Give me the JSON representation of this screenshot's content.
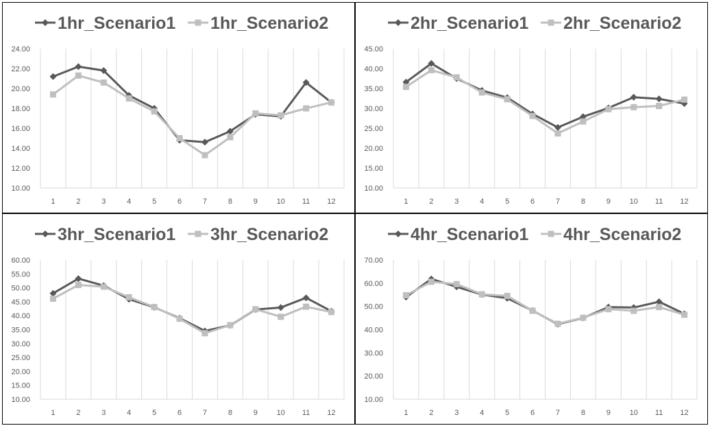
{
  "chart_data": [
    {
      "type": "line",
      "categories": [
        "1",
        "2",
        "3",
        "4",
        "5",
        "6",
        "7",
        "8",
        "9",
        "10",
        "11",
        "12"
      ],
      "ylim": [
        10,
        24
      ],
      "yticks": [
        "10.00",
        "12.00",
        "14.00",
        "16.00",
        "18.00",
        "20.00",
        "22.00",
        "24.00"
      ],
      "grid": "vertical",
      "legend_position": "top",
      "series": [
        {
          "name": "1hr_Scenario1",
          "color": "#595959",
          "marker": "diamond",
          "values": [
            21.2,
            22.2,
            21.8,
            19.3,
            18.0,
            14.8,
            14.6,
            15.7,
            17.4,
            17.2,
            20.6,
            18.6
          ]
        },
        {
          "name": "1hr_Scenario2",
          "color": "#bfbfbf",
          "marker": "square",
          "values": [
            19.4,
            21.3,
            20.6,
            19.0,
            17.7,
            15.0,
            13.3,
            15.1,
            17.5,
            17.3,
            18.0,
            18.6
          ]
        }
      ]
    },
    {
      "type": "line",
      "categories": [
        "1",
        "2",
        "3",
        "4",
        "5",
        "6",
        "7",
        "8",
        "9",
        "10",
        "11",
        "12"
      ],
      "ylim": [
        10,
        45
      ],
      "yticks": [
        "10.00",
        "15.00",
        "20.00",
        "25.00",
        "30.00",
        "35.00",
        "40.00",
        "45.00"
      ],
      "grid": "vertical",
      "legend_position": "top",
      "series": [
        {
          "name": "2hr_Scenario1",
          "color": "#595959",
          "marker": "diamond",
          "values": [
            36.6,
            41.3,
            37.5,
            34.5,
            32.7,
            28.6,
            25.2,
            27.9,
            30.1,
            32.8,
            32.4,
            31.2
          ]
        },
        {
          "name": "2hr_Scenario2",
          "color": "#bfbfbf",
          "marker": "square",
          "values": [
            35.4,
            39.6,
            37.8,
            34.0,
            32.3,
            28.1,
            23.7,
            26.7,
            29.8,
            30.3,
            30.6,
            32.2
          ]
        }
      ]
    },
    {
      "type": "line",
      "categories": [
        "1",
        "2",
        "3",
        "4",
        "5",
        "6",
        "7",
        "8",
        "9",
        "10",
        "11",
        "12"
      ],
      "ylim": [
        10,
        60
      ],
      "yticks": [
        "10.00",
        "15.00",
        "20.00",
        "25.00",
        "30.00",
        "35.00",
        "40.00",
        "45.00",
        "50.00",
        "55.00",
        "60.00"
      ],
      "grid": "vertical",
      "legend_position": "top",
      "series": [
        {
          "name": "3hr_Scenario1",
          "color": "#595959",
          "marker": "diamond",
          "values": [
            48.0,
            53.3,
            50.8,
            45.9,
            43.0,
            39.1,
            34.5,
            36.5,
            42.2,
            42.9,
            46.4,
            41.6
          ]
        },
        {
          "name": "3hr_Scenario2",
          "color": "#bfbfbf",
          "marker": "square",
          "values": [
            46.1,
            51.0,
            50.4,
            46.6,
            43.1,
            38.9,
            33.7,
            36.6,
            42.3,
            39.6,
            43.2,
            41.3
          ]
        }
      ]
    },
    {
      "type": "line",
      "categories": [
        "1",
        "2",
        "3",
        "4",
        "5",
        "6",
        "7",
        "8",
        "9",
        "10",
        "11",
        "12"
      ],
      "ylim": [
        10,
        70
      ],
      "yticks": [
        "10.00",
        "20.00",
        "30.00",
        "40.00",
        "50.00",
        "60.00",
        "70.00"
      ],
      "grid": "vertical",
      "legend_position": "top",
      "series": [
        {
          "name": "4hr_Scenario1",
          "color": "#595959",
          "marker": "diamond",
          "values": [
            54.0,
            61.8,
            58.4,
            55.1,
            53.5,
            48.2,
            42.3,
            45.0,
            49.7,
            49.5,
            52.0,
            46.8
          ]
        },
        {
          "name": "4hr_Scenario2",
          "color": "#bfbfbf",
          "marker": "square",
          "values": [
            54.8,
            60.6,
            59.6,
            55.2,
            54.5,
            48.1,
            42.5,
            45.1,
            48.8,
            48.1,
            49.7,
            46.4
          ]
        }
      ]
    }
  ]
}
